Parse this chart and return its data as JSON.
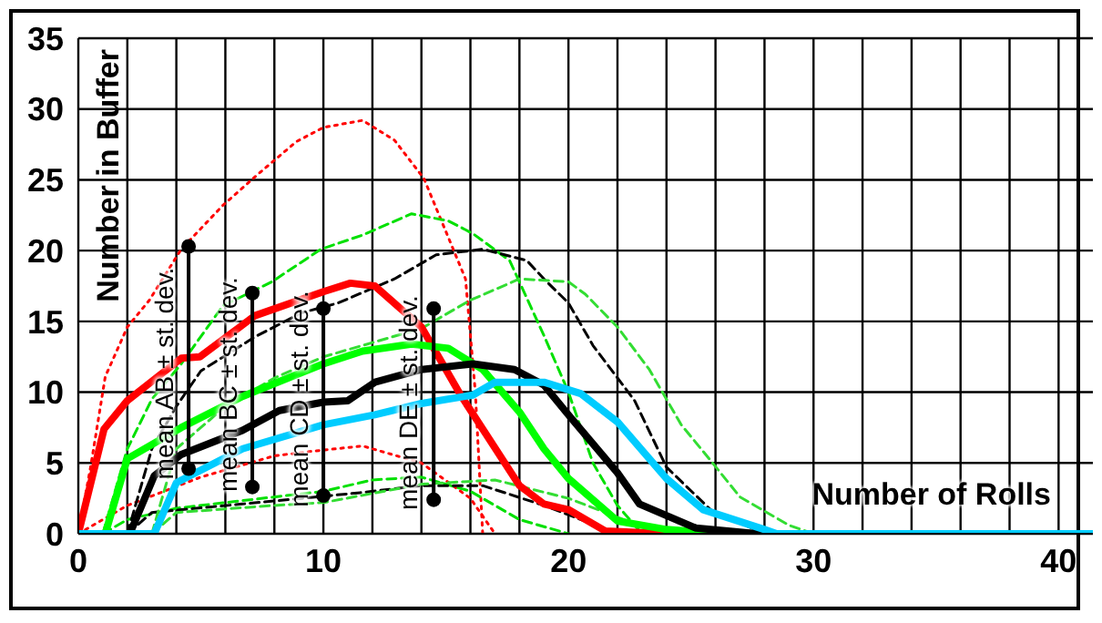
{
  "chart_data": {
    "type": "line",
    "xlabel": "Number of Rolls",
    "ylabel": "Number in Buffer",
    "xlim": [
      0,
      41.4
    ],
    "ylim": [
      0,
      35
    ],
    "xticks": [
      0,
      {
        "value": 2,
        "label": null
      },
      {
        "value": 4,
        "label": null
      },
      {
        "value": 6,
        "label": null
      },
      {
        "value": 8,
        "label": null
      },
      10,
      {
        "value": 12,
        "label": null
      },
      {
        "value": 14,
        "label": null
      },
      {
        "value": 16,
        "label": null
      },
      {
        "value": 18,
        "label": null
      },
      20,
      {
        "value": 22,
        "label": null
      },
      {
        "value": 24,
        "label": null
      },
      {
        "value": 26,
        "label": null
      },
      {
        "value": 28,
        "label": null
      },
      30,
      {
        "value": 32,
        "label": null
      },
      {
        "value": 34,
        "label": null
      },
      {
        "value": 36,
        "label": null
      },
      {
        "value": 38,
        "label": null
      },
      40
    ],
    "yticks": [
      0,
      5,
      10,
      15,
      20,
      25,
      30,
      35
    ],
    "grid": true,
    "series": [
      {
        "color": "#ff0000",
        "line_style": "dotted",
        "x": [
          0,
          0.5,
          1.1,
          2,
          2.9,
          4.2,
          5.9,
          7.4,
          8.9,
          10,
          11.6,
          12.9,
          14.1,
          15.8,
          16.2,
          16.5
        ],
        "values": [
          0,
          4.7,
          11.1,
          14.6,
          16.5,
          20.1,
          23.2,
          25.5,
          27.7,
          28.7,
          29.2,
          27.8,
          25.1,
          18,
          10,
          0
        ]
      },
      {
        "color": "#ff0000",
        "line_style": "dotted",
        "x": [
          0,
          2,
          5,
          8,
          9.4,
          11.6,
          14,
          16,
          17
        ],
        "values": [
          0,
          2,
          4,
          5.5,
          5.8,
          6.2,
          5,
          2.5,
          0
        ]
      },
      {
        "color": "#00e000",
        "line_style": "dashed",
        "x": [
          1,
          2,
          3,
          4.2,
          5.9,
          7.9,
          9.9,
          11.6,
          13.6,
          15.1,
          16.1,
          17.6,
          19,
          20,
          21,
          22,
          23
        ],
        "values": [
          0,
          6,
          9.5,
          12,
          16.1,
          17.8,
          20.1,
          21.1,
          22.6,
          22.1,
          21.2,
          19.3,
          14,
          10,
          5,
          2,
          0
        ]
      },
      {
        "color": "#00e000",
        "line_style": "dashed",
        "x": [
          1,
          2,
          4,
          6,
          10,
          12,
          14,
          16,
          18,
          20
        ],
        "values": [
          0,
          1,
          1.8,
          2.2,
          3,
          3.8,
          4,
          3,
          1,
          0
        ]
      },
      {
        "color": "#000000",
        "line_style": "dashed",
        "x": [
          2,
          3,
          4,
          5,
          7.2,
          9.1,
          10.6,
          12.9,
          14.6,
          16.5,
          18.3,
          19,
          20,
          21,
          22.7,
          24,
          25.8,
          28
        ],
        "values": [
          0,
          6,
          9,
          11.5,
          13.9,
          15.6,
          16.3,
          18,
          19.7,
          20.1,
          19.3,
          18,
          16.3,
          13.3,
          9.4,
          4.7,
          1.7,
          0
        ]
      },
      {
        "color": "#000000",
        "line_style": "dashed",
        "x": [
          2,
          3,
          6.7,
          11.5,
          14,
          16.5,
          19,
          22
        ],
        "values": [
          0,
          1.5,
          2.1,
          2.9,
          3.4,
          3.4,
          2,
          0
        ]
      },
      {
        "color": "#33dd33",
        "line_style": "dashed",
        "x": [
          3,
          4,
          6,
          8,
          10,
          12,
          14,
          16,
          18,
          20,
          20.7,
          22,
          23.3,
          24.6,
          25.6,
          27,
          29,
          30
        ],
        "values": [
          0,
          6,
          9,
          11,
          12.5,
          13.5,
          14.5,
          16.5,
          18,
          17.8,
          16.9,
          14.6,
          11.6,
          7.7,
          5.6,
          2.6,
          0.6,
          0
        ]
      },
      {
        "color": "#33dd33",
        "line_style": "dashed",
        "x": [
          3,
          4,
          8,
          10,
          14,
          17,
          20,
          23,
          25
        ],
        "values": [
          0,
          1.5,
          2,
          2.2,
          3.5,
          3.8,
          2.5,
          0.5,
          0
        ]
      },
      {
        "color": "#ff0000",
        "line_style": "solid",
        "x": [
          0,
          1.05,
          2,
          4.2,
          4.96,
          7.2,
          10,
          11.1,
          12.1,
          14,
          15.6,
          18,
          19,
          20,
          21.5,
          24
        ],
        "values": [
          0,
          7.4,
          9.4,
          12.4,
          12.5,
          15.4,
          17.1,
          17.7,
          17.5,
          14.6,
          9.8,
          3.4,
          2.1,
          1.7,
          0.2,
          0
        ]
      },
      {
        "color": "#00ff00",
        "line_style": "solid",
        "x": [
          1.1,
          2,
          4.2,
          6.7,
          8.7,
          10,
          11.6,
          13.6,
          15.1,
          16.5,
          18,
          19,
          20,
          22,
          24,
          26.4
        ],
        "values": [
          0,
          5.3,
          7.5,
          9.7,
          11.1,
          12,
          12.9,
          13.4,
          13.1,
          11.6,
          8.6,
          6,
          3.9,
          0.9,
          0.3,
          0
        ]
      },
      {
        "color": "#000000",
        "line_style": "solid",
        "x": [
          2.1,
          3.1,
          4.2,
          6.7,
          8.2,
          10,
          11,
          12.1,
          14,
          16.1,
          17.8,
          19,
          20,
          22,
          22.9,
          25.2,
          27.7
        ],
        "values": [
          0,
          4.1,
          5.6,
          7.3,
          8.7,
          9.3,
          9.4,
          10.7,
          11.6,
          12,
          11.6,
          10.5,
          8.4,
          4.3,
          2.1,
          0.4,
          0
        ]
      },
      {
        "color": "#00ccff",
        "line_style": "solid",
        "x": [
          0,
          3.1,
          4,
          6.7,
          10,
          12.1,
          14,
          16.1,
          17,
          19,
          20.5,
          22,
          24,
          25.5,
          28,
          28.5,
          41.4
        ],
        "values": [
          0,
          0,
          3.6,
          6,
          7.7,
          8.4,
          9.2,
          9.8,
          10.7,
          10.7,
          9.9,
          7.9,
          3.9,
          1.7,
          0.3,
          0,
          0
        ]
      },
      {
        "type": "scatter",
        "color": "#000000",
        "x": [
          4.5,
          7.1,
          10,
          14.5
        ],
        "values": [
          20.3,
          17,
          15.9,
          15.9
        ],
        "errors": [
          [
            4.6,
            20.3
          ],
          [
            3.3,
            17
          ],
          [
            2.7,
            15.9
          ],
          [
            2.4,
            15.9
          ]
        ]
      },
      {
        "type": "scatter",
        "color": "#000000",
        "x": [
          4.5,
          7.1,
          10,
          14.5
        ],
        "values": [
          4.6,
          3.3,
          2.7,
          2.4
        ]
      }
    ],
    "annotations": [
      {
        "text": "mean AB ± st. dev.",
        "x": 4.5,
        "y": 11.3
      },
      {
        "text": "mean BC ± st. dev.",
        "x": 7.1,
        "y": 10.5
      },
      {
        "text": "mean CD ± st. dev.",
        "x": 10,
        "y": 9.5
      },
      {
        "text": "mean DE ± st. dev.",
        "x": 14.5,
        "y": 9.3
      }
    ]
  }
}
